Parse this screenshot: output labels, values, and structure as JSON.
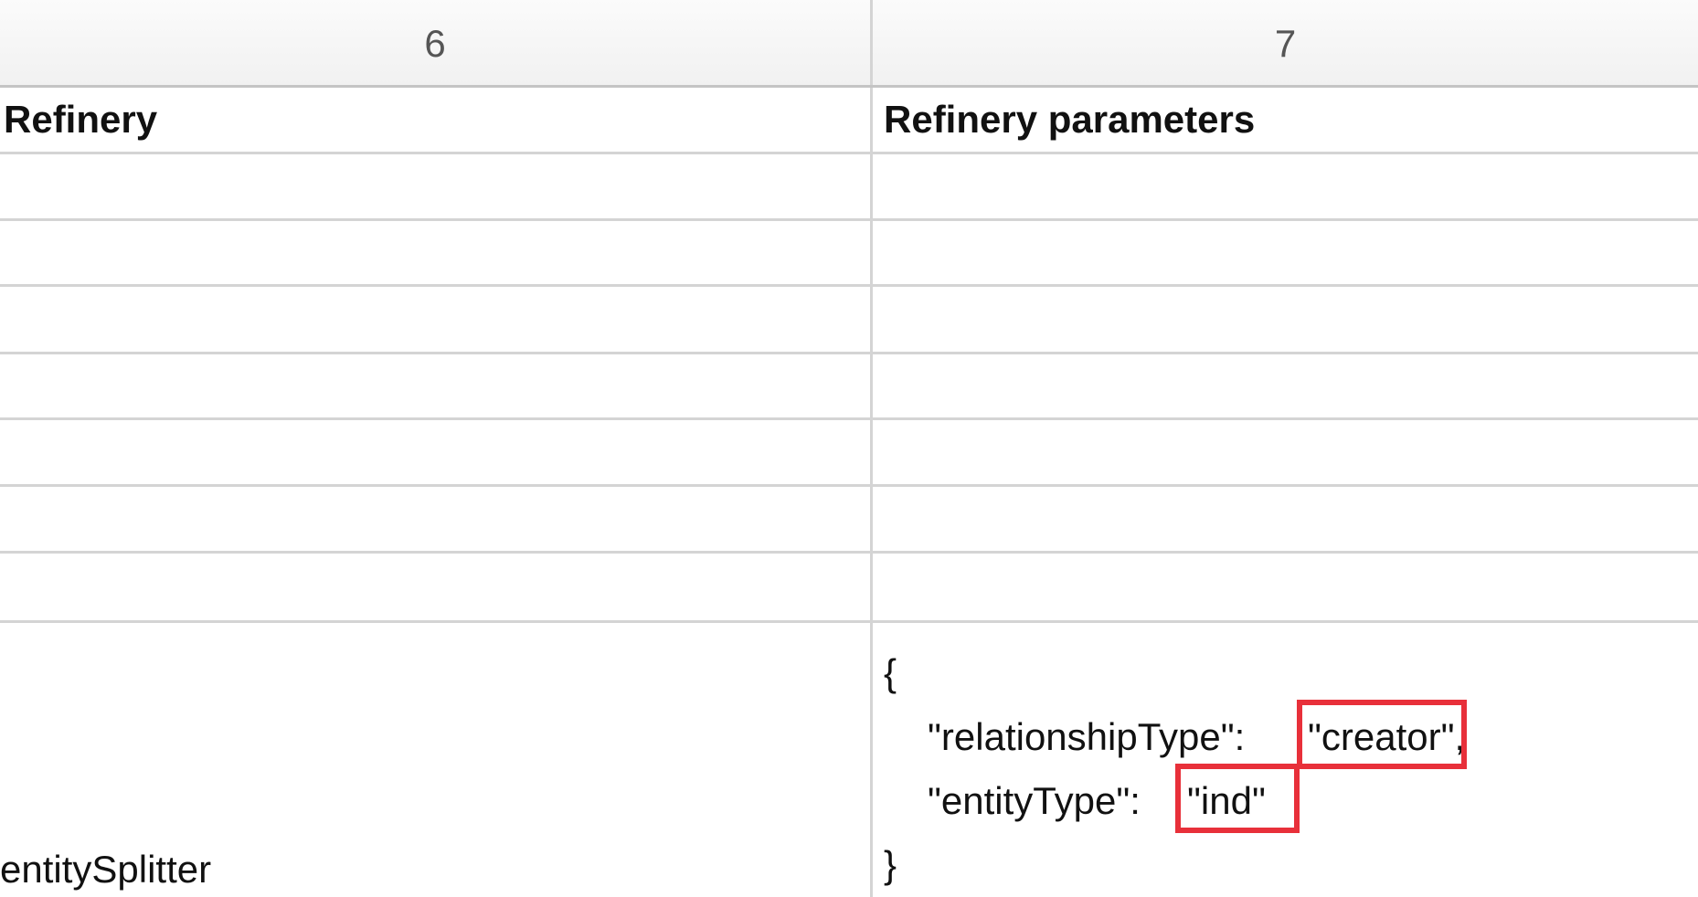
{
  "columns": {
    "a": {
      "header": "6"
    },
    "b": {
      "header": "7"
    }
  },
  "header_row": {
    "a": "Refinery",
    "b": "Refinery parameters"
  },
  "data_row": {
    "a": "entitySplitter",
    "b_lines": {
      "open": "{",
      "key1": "\"relationshipType\": ",
      "val1": "\"creator\",",
      "key2": "\"entityType\": ",
      "val2": "\"ind\"",
      "close": "}"
    }
  },
  "highlight_color": "#e8303a"
}
